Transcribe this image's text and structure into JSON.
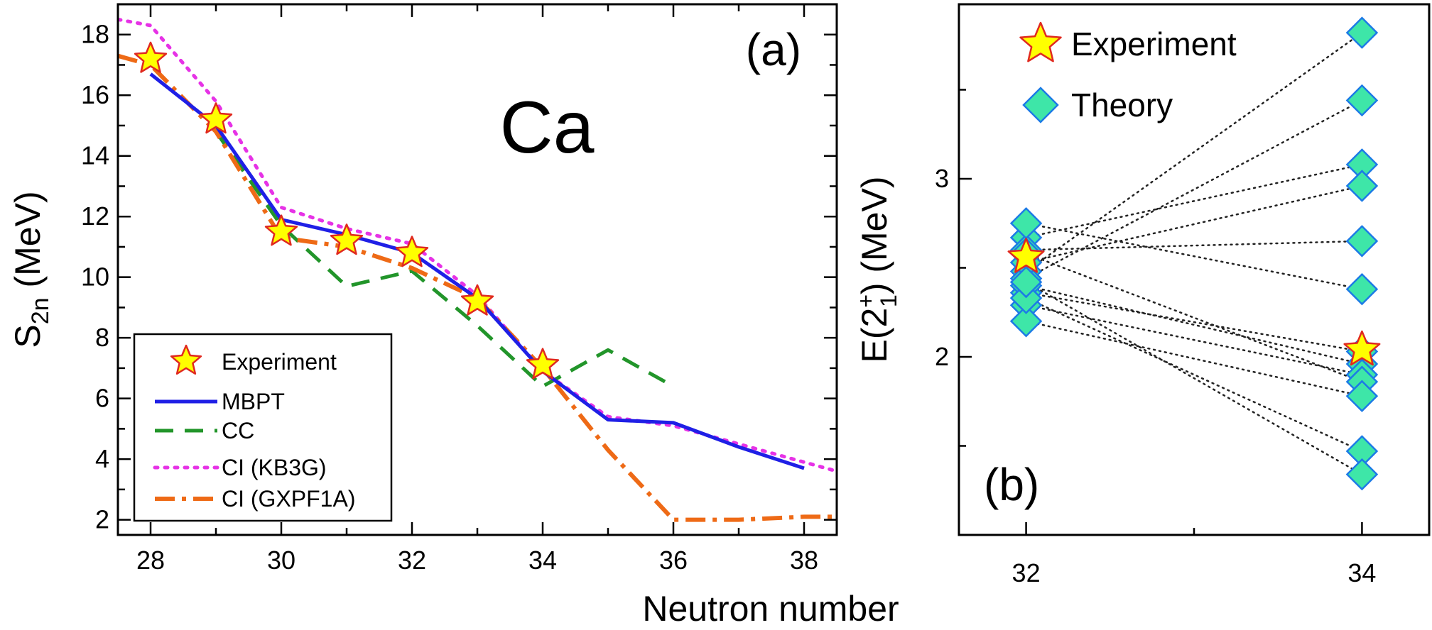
{
  "chart_data": [
    {
      "type": "line",
      "panel_label": "(a)",
      "annotation": "Ca",
      "ylabel_main": "S",
      "ylabel_sub": "2n",
      "ylabel_rest": " (MeV)",
      "shared_xlabel": "Neutron number",
      "xlim": [
        27.5,
        38.5
      ],
      "ylim": [
        1.5,
        19
      ],
      "xticks": [
        28,
        30,
        32,
        34,
        36,
        38
      ],
      "yticks": [
        2,
        4,
        6,
        8,
        10,
        12,
        14,
        16,
        18
      ],
      "grid": false,
      "legend": "bottom-left",
      "experiment": {
        "name": "Experiment",
        "x": [
          28,
          29,
          30,
          31,
          32,
          33,
          34
        ],
        "y": [
          17.2,
          15.2,
          11.5,
          11.2,
          10.8,
          9.2,
          7.1
        ],
        "color": "#ffff00",
        "edge": "#e0291f"
      },
      "series": [
        {
          "name": "MBPT",
          "color": "#1f1fe6",
          "dash": "none",
          "width": 5,
          "x": [
            28,
            29,
            30,
            31,
            32,
            33,
            34,
            35,
            36,
            37,
            38
          ],
          "y": [
            16.7,
            15.0,
            11.9,
            11.4,
            10.8,
            9.3,
            6.9,
            5.3,
            5.2,
            4.4,
            3.7
          ]
        },
        {
          "name": "CC",
          "color": "#22952a",
          "dash": "26,16",
          "width": 5,
          "x": [
            29,
            30,
            31,
            32,
            33,
            34,
            35,
            36
          ],
          "y": [
            14.8,
            11.7,
            9.7,
            10.2,
            8.4,
            6.4,
            7.6,
            6.4
          ]
        },
        {
          "name": "CI (KB3G)",
          "color": "#e632e6",
          "dash": "4,10",
          "width": 5,
          "x": [
            27.5,
            28,
            29,
            30,
            31,
            32,
            33,
            34,
            35,
            36,
            37,
            38,
            38.5
          ],
          "y": [
            18.5,
            18.3,
            15.8,
            12.3,
            11.6,
            11.1,
            9.4,
            6.9,
            5.4,
            5.1,
            4.5,
            3.9,
            3.6
          ]
        },
        {
          "name": "CI (GXPF1A)",
          "color": "#ee6a16",
          "dash": "28,10,6,10",
          "width": 6,
          "x": [
            27.5,
            28,
            29,
            30,
            31,
            32,
            33,
            34,
            35,
            36,
            37,
            38,
            38.5
          ],
          "y": [
            17.3,
            17.0,
            14.8,
            11.3,
            11.0,
            10.3,
            9.3,
            7.0,
            4.3,
            2.0,
            2.0,
            2.1,
            2.1
          ]
        }
      ]
    },
    {
      "type": "scatter",
      "panel_label": "(b)",
      "ylabel_main": "E(2",
      "ylabel_sup": "+",
      "ylabel_sub": "1",
      "ylabel_rest": ") (MeV)",
      "xlim": [
        31.6,
        34.4
      ],
      "ylim": [
        1.0,
        3.98
      ],
      "xticks": [
        32,
        34
      ],
      "yticks": [
        2,
        3
      ],
      "grid": false,
      "legend": "top-left",
      "legend_entries": [
        {
          "name": "Experiment",
          "marker": "star"
        },
        {
          "name": "Theory",
          "marker": "diamond"
        }
      ],
      "experiment": {
        "name": "Experiment",
        "x": [
          32,
          34
        ],
        "y": [
          2.56,
          2.04
        ],
        "color": "#ffff00",
        "edge": "#e0291f"
      },
      "theory": {
        "name": "Theory",
        "color": "#3ee6a8",
        "edge": "#1c7ae6",
        "pairs": [
          {
            "x1": 32,
            "y1": 2.48,
            "x2": 34,
            "y2": 3.82
          },
          {
            "x1": 32,
            "y1": 2.44,
            "x2": 34,
            "y2": 3.44
          },
          {
            "x1": 32,
            "y1": 2.67,
            "x2": 34,
            "y2": 3.08
          },
          {
            "x1": 32,
            "y1": 2.53,
            "x2": 34,
            "y2": 2.96
          },
          {
            "x1": 32,
            "y1": 2.6,
            "x2": 34,
            "y2": 2.65
          },
          {
            "x1": 32,
            "y1": 2.75,
            "x2": 34,
            "y2": 2.38
          },
          {
            "x1": 32,
            "y1": 2.36,
            "x2": 34,
            "y2": 2.03
          },
          {
            "x1": 32,
            "y1": 2.4,
            "x2": 34,
            "y2": 1.96
          },
          {
            "x1": 32,
            "y1": 2.29,
            "x2": 34,
            "y2": 1.9
          },
          {
            "x1": 32,
            "y1": 2.58,
            "x2": 34,
            "y2": 1.86
          },
          {
            "x1": 32,
            "y1": 2.2,
            "x2": 34,
            "y2": 1.78
          },
          {
            "x1": 32,
            "y1": 2.33,
            "x2": 34,
            "y2": 1.47
          },
          {
            "x1": 32,
            "y1": 2.42,
            "x2": 34,
            "y2": 1.34
          }
        ]
      }
    }
  ]
}
